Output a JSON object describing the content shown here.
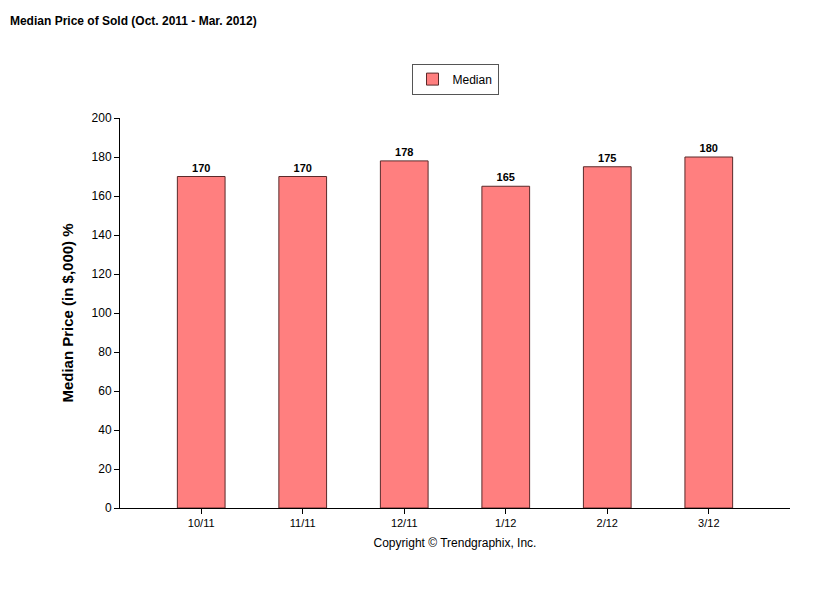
{
  "chart_data": {
    "type": "bar",
    "title": "Median Price of Sold (Oct. 2011 - Mar. 2012)",
    "x_label": "Copyright © Trendgraphix, Inc.",
    "y_label": "Median Price (in $,000) %",
    "categories": [
      "10/11",
      "11/11",
      "12/11",
      "1/12",
      "2/12",
      "3/12"
    ],
    "series": [
      {
        "name": "Median",
        "color": "#ff7f7f",
        "values": [
          170,
          170,
          178,
          165,
          175,
          180
        ]
      }
    ],
    "ylim": [
      0,
      200
    ],
    "yticks": [
      0,
      20,
      40,
      60,
      80,
      100,
      120,
      140,
      160,
      180,
      200
    ],
    "grid": false,
    "legend": "top",
    "data_labels": true
  }
}
